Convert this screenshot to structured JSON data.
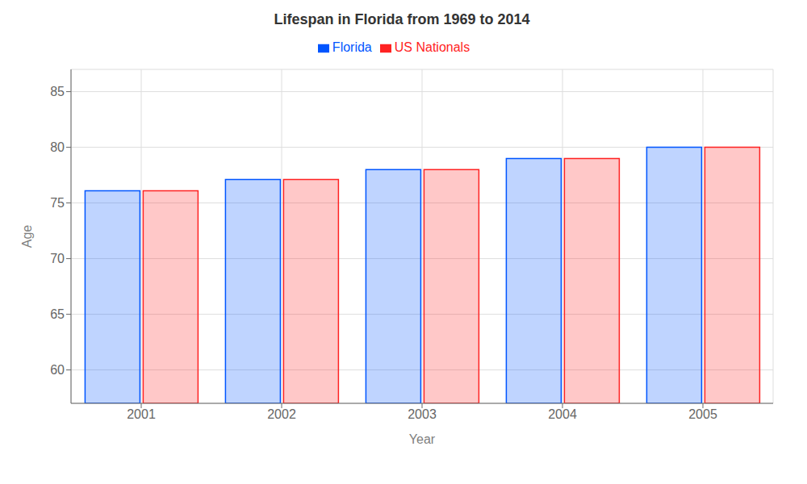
{
  "chart_data": {
    "type": "bar",
    "title": "Lifespan in Florida from 1969 to 2014",
    "xlabel": "Year",
    "ylabel": "Age",
    "categories": [
      "2001",
      "2002",
      "2003",
      "2004",
      "2005"
    ],
    "series": [
      {
        "name": "Florida",
        "color": "#0055ff",
        "values": [
          76.1,
          77.1,
          78.0,
          79.0,
          80.0
        ]
      },
      {
        "name": "US Nationals",
        "color": "#ff2222",
        "values": [
          76.1,
          77.1,
          78.0,
          79.0,
          80.0
        ]
      }
    ],
    "ylim": [
      57,
      87
    ],
    "yticks": [
      60,
      65,
      70,
      75,
      80,
      85
    ],
    "grid": true,
    "legend": "top"
  }
}
